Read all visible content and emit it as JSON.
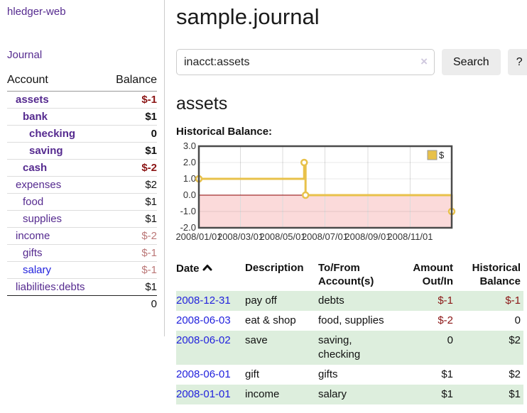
{
  "colors": {
    "accent_purple": "#552a8f",
    "link_blue": "#2222dd",
    "negative_strong": "#8b1515",
    "negative_muted": "#bb7777",
    "row_shade_green": "#ddeedd",
    "button_gray": "#ececec"
  },
  "sidebar": {
    "brand": "hledger-web",
    "journal_link": "Journal",
    "accounts": {
      "headers": {
        "account": "Account",
        "balance": "Balance"
      },
      "rows": [
        {
          "name": "assets",
          "depth": 1,
          "balance": "$-1",
          "bold": true,
          "balance_class": "neg-strong"
        },
        {
          "name": "bank",
          "depth": 2,
          "balance": "$1",
          "bold": true,
          "balance_class": ""
        },
        {
          "name": "checking",
          "depth": 3,
          "balance": "0",
          "bold": true,
          "balance_class": ""
        },
        {
          "name": "saving",
          "depth": 3,
          "balance": "$1",
          "bold": true,
          "balance_class": ""
        },
        {
          "name": "cash",
          "depth": 2,
          "balance": "$-2",
          "bold": true,
          "balance_class": "neg-strong"
        },
        {
          "name": "expenses",
          "depth": 1,
          "balance": "$2",
          "bold": false,
          "balance_class": ""
        },
        {
          "name": "food",
          "depth": 2,
          "balance": "$1",
          "bold": false,
          "balance_class": ""
        },
        {
          "name": "supplies",
          "depth": 2,
          "balance": "$1",
          "bold": false,
          "balance_class": ""
        },
        {
          "name": "income",
          "depth": 1,
          "balance": "$-2",
          "bold": false,
          "balance_class": "neg-muted"
        },
        {
          "name": "gifts",
          "depth": 2,
          "balance": "$-1",
          "bold": false,
          "balance_class": "neg-muted"
        },
        {
          "name": "salary",
          "depth": 2,
          "balance": "$-1",
          "bold": false,
          "balance_class": "neg-muted",
          "link_blue": true
        },
        {
          "name": "liabilities:debts",
          "depth": 1,
          "balance": "$1",
          "bold": false,
          "balance_class": "",
          "last": true
        }
      ],
      "total": "0"
    }
  },
  "header": {
    "title": "sample.journal"
  },
  "search": {
    "value": "inacct:assets",
    "clear_icon": "×",
    "button_label": "Search",
    "help_label": "?"
  },
  "account_page": {
    "title": "assets",
    "chart_label": "Historical Balance:"
  },
  "chart_data": {
    "type": "line",
    "title": "Historical Balance",
    "legend": {
      "label": "$",
      "position": "top-right"
    },
    "ylim": [
      -2,
      3
    ],
    "x_domain_days": [
      0,
      365
    ],
    "grid": true,
    "y_ticks": [
      {
        "label": "3.0",
        "value": 3
      },
      {
        "label": "2.0",
        "value": 2
      },
      {
        "label": "1.0",
        "value": 1
      },
      {
        "label": "0.0",
        "value": 0
      },
      {
        "label": "-1.0",
        "value": -1
      },
      {
        "label": "-2.0",
        "value": -2
      }
    ],
    "x_ticks": [
      {
        "label": "2008/01/01",
        "day": 0
      },
      {
        "label": "2008/03/01",
        "day": 60
      },
      {
        "label": "2008/05/01",
        "day": 121
      },
      {
        "label": "2008/07/01",
        "day": 182
      },
      {
        "label": "2008/09/01",
        "day": 244
      },
      {
        "label": "2008/11/01",
        "day": 305
      }
    ],
    "points": [
      {
        "date": "2008-01-01",
        "value": 1
      },
      {
        "date": "2008-06-01",
        "value": 2
      },
      {
        "date": "2008-06-02",
        "value": 2
      },
      {
        "date": "2008-06-03",
        "value": 0
      },
      {
        "date": "2008-12-31",
        "value": -1
      }
    ],
    "series": [
      {
        "name": "$",
        "step_path": [
          [
            0,
            1
          ],
          [
            152,
            1
          ],
          [
            152,
            2
          ],
          [
            154,
            2
          ],
          [
            154,
            0
          ],
          [
            365,
            0
          ],
          [
            365,
            -1
          ]
        ],
        "markers": [
          [
            0,
            1
          ],
          [
            152,
            2
          ],
          [
            154,
            0
          ],
          [
            365,
            -1
          ]
        ]
      }
    ],
    "chart_colors": {
      "line": "#e8c14a",
      "marker_fill": "#ffffff",
      "negative_fill": "#fbdada",
      "zero_line": "#8b0000",
      "border": "#4a4a4a",
      "grid_vertical": "#dcdcdc",
      "grid_horizontal": "rgba(0,0,0,0.09)"
    }
  },
  "register": {
    "headers": [
      "Date",
      "Description",
      "To/From Account(s)",
      "Amount Out/In",
      "Historical Balance"
    ],
    "rows": [
      {
        "date": "2008-12-31",
        "description": "pay off",
        "accounts": "debts",
        "amount": "$-1",
        "amount_class": "neg-strong",
        "balance": "$-1",
        "balance_class": "neg-strong",
        "shaded": true
      },
      {
        "date": "2008-06-03",
        "description": "eat & shop",
        "accounts": "food, supplies",
        "amount": "$-2",
        "amount_class": "neg-strong",
        "balance": "0",
        "balance_class": "",
        "shaded": false
      },
      {
        "date": "2008-06-02",
        "description": "save",
        "accounts": "saving, checking",
        "amount": "0",
        "amount_class": "",
        "balance": "$2",
        "balance_class": "",
        "shaded": true
      },
      {
        "date": "2008-06-01",
        "description": "gift",
        "accounts": "gifts",
        "amount": "$1",
        "amount_class": "",
        "balance": "$2",
        "balance_class": "",
        "shaded": false
      },
      {
        "date": "2008-01-01",
        "description": "income",
        "accounts": "salary",
        "amount": "$1",
        "amount_class": "",
        "balance": "$1",
        "balance_class": "",
        "shaded": true
      }
    ]
  }
}
